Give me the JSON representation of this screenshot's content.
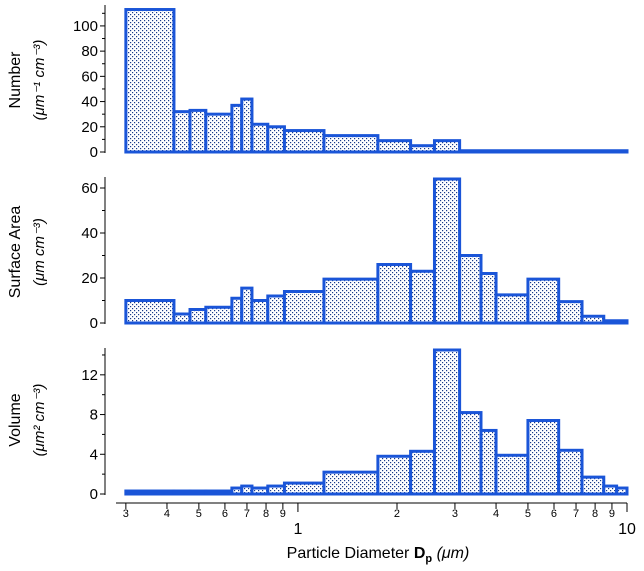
{
  "figure": {
    "xlabel_main": "Particle Diameter ",
    "xlabel_bold": "D",
    "xlabel_sub": "p",
    "xlabel_unit": " (μm)",
    "x_tick_labels": [
      "3",
      "4",
      "5",
      "6",
      "7",
      "8",
      "9",
      "1",
      "2",
      "3",
      "4",
      "5",
      "6",
      "7",
      "8",
      "9",
      "10"
    ]
  },
  "chart_data": [
    {
      "type": "bar",
      "ylabel_line1": "Number",
      "ylabel_line2": "(μm⁻¹ cm⁻³)",
      "xscale": "log",
      "xlim": [
        0.28,
        10
      ],
      "ylim": [
        0,
        115
      ],
      "yticks": [
        0,
        20,
        40,
        60,
        80,
        100
      ],
      "bins": [
        {
          "x0": 0.3,
          "x1": 0.42,
          "value": 113
        },
        {
          "x0": 0.42,
          "x1": 0.47,
          "value": 32
        },
        {
          "x0": 0.47,
          "x1": 0.525,
          "value": 33
        },
        {
          "x0": 0.525,
          "x1": 0.63,
          "value": 30
        },
        {
          "x0": 0.63,
          "x1": 0.675,
          "value": 37
        },
        {
          "x0": 0.675,
          "x1": 0.725,
          "value": 42
        },
        {
          "x0": 0.725,
          "x1": 0.81,
          "value": 22
        },
        {
          "x0": 0.81,
          "x1": 0.91,
          "value": 20
        },
        {
          "x0": 0.91,
          "x1": 1.2,
          "value": 17
        },
        {
          "x0": 1.2,
          "x1": 1.75,
          "value": 13
        },
        {
          "x0": 1.75,
          "x1": 2.2,
          "value": 9
        },
        {
          "x0": 2.2,
          "x1": 2.6,
          "value": 5
        },
        {
          "x0": 2.6,
          "x1": 3.1,
          "value": 9
        },
        {
          "x0": 3.1,
          "x1": 10,
          "value": 1
        }
      ]
    },
    {
      "type": "bar",
      "ylabel_line1": "Surface Area",
      "ylabel_line2": "(μm cm⁻³)",
      "xscale": "log",
      "xlim": [
        0.28,
        10
      ],
      "ylim": [
        0,
        64
      ],
      "yticks": [
        0,
        20,
        40,
        60
      ],
      "bins": [
        {
          "x0": 0.3,
          "x1": 0.42,
          "value": 10
        },
        {
          "x0": 0.42,
          "x1": 0.47,
          "value": 4
        },
        {
          "x0": 0.47,
          "x1": 0.525,
          "value": 6
        },
        {
          "x0": 0.525,
          "x1": 0.63,
          "value": 7
        },
        {
          "x0": 0.63,
          "x1": 0.675,
          "value": 11
        },
        {
          "x0": 0.675,
          "x1": 0.725,
          "value": 15.5
        },
        {
          "x0": 0.725,
          "x1": 0.81,
          "value": 10
        },
        {
          "x0": 0.81,
          "x1": 0.91,
          "value": 12
        },
        {
          "x0": 0.91,
          "x1": 1.2,
          "value": 14
        },
        {
          "x0": 1.2,
          "x1": 1.75,
          "value": 19.5
        },
        {
          "x0": 1.75,
          "x1": 2.2,
          "value": 26
        },
        {
          "x0": 2.2,
          "x1": 2.6,
          "value": 23
        },
        {
          "x0": 2.6,
          "x1": 3.1,
          "value": 64
        },
        {
          "x0": 3.1,
          "x1": 3.6,
          "value": 30
        },
        {
          "x0": 3.6,
          "x1": 4.0,
          "value": 22
        },
        {
          "x0": 4.0,
          "x1": 5.0,
          "value": 12.5
        },
        {
          "x0": 5.0,
          "x1": 6.2,
          "value": 19.5
        },
        {
          "x0": 6.2,
          "x1": 7.3,
          "value": 9.5
        },
        {
          "x0": 7.3,
          "x1": 8.5,
          "value": 3
        },
        {
          "x0": 8.5,
          "x1": 10,
          "value": 1
        }
      ]
    },
    {
      "type": "bar",
      "ylabel_line1": "Volume",
      "ylabel_line2": "(μm² cm⁻³)",
      "xscale": "log",
      "xlim": [
        0.28,
        10
      ],
      "ylim": [
        0,
        14.5
      ],
      "yticks": [
        0,
        4,
        8,
        12
      ],
      "bins": [
        {
          "x0": 0.3,
          "x1": 0.42,
          "value": 0.3
        },
        {
          "x0": 0.42,
          "x1": 0.47,
          "value": 0.3
        },
        {
          "x0": 0.47,
          "x1": 0.525,
          "value": 0.3
        },
        {
          "x0": 0.525,
          "x1": 0.63,
          "value": 0.3
        },
        {
          "x0": 0.63,
          "x1": 0.675,
          "value": 0.6
        },
        {
          "x0": 0.675,
          "x1": 0.725,
          "value": 0.8
        },
        {
          "x0": 0.725,
          "x1": 0.81,
          "value": 0.6
        },
        {
          "x0": 0.81,
          "x1": 0.91,
          "value": 0.8
        },
        {
          "x0": 0.91,
          "x1": 1.2,
          "value": 1.1
        },
        {
          "x0": 1.2,
          "x1": 1.75,
          "value": 2.2
        },
        {
          "x0": 1.75,
          "x1": 2.2,
          "value": 3.8
        },
        {
          "x0": 2.2,
          "x1": 2.6,
          "value": 4.3
        },
        {
          "x0": 2.6,
          "x1": 3.1,
          "value": 14.5
        },
        {
          "x0": 3.1,
          "x1": 3.6,
          "value": 8.2
        },
        {
          "x0": 3.6,
          "x1": 4.0,
          "value": 6.4
        },
        {
          "x0": 4.0,
          "x1": 5.0,
          "value": 3.9
        },
        {
          "x0": 5.0,
          "x1": 6.2,
          "value": 7.4
        },
        {
          "x0": 6.2,
          "x1": 7.3,
          "value": 4.4
        },
        {
          "x0": 7.3,
          "x1": 8.5,
          "value": 1.7
        },
        {
          "x0": 8.5,
          "x1": 9.3,
          "value": 0.8
        },
        {
          "x0": 9.3,
          "x1": 10,
          "value": 0.6
        }
      ]
    }
  ],
  "colors": {
    "bar_stroke": "#1a55d8",
    "bar_dots": "#1a3a8a",
    "axis": "#000000"
  }
}
